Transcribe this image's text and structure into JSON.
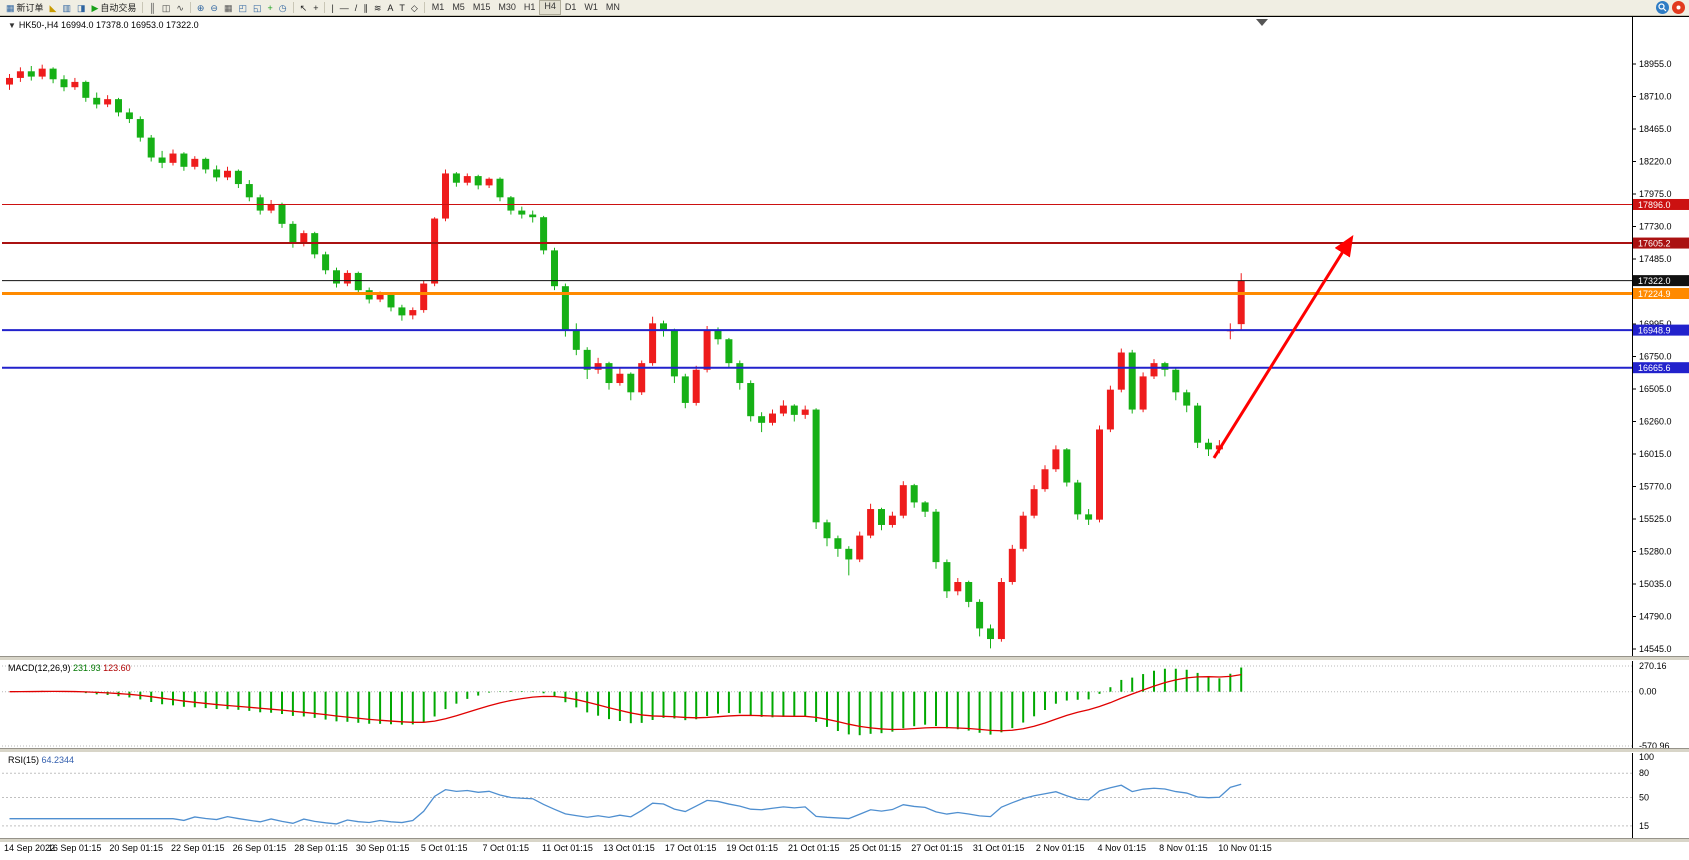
{
  "toolbar": {
    "buttons": [
      {
        "name": "new-order-button",
        "icon": "▦",
        "icon_color": "#2e64a0",
        "label": "新订单"
      },
      {
        "name": "alerts-icon",
        "icon": "◣",
        "icon_color": "#c89b00"
      },
      {
        "name": "market-watch-icon",
        "icon": "▥",
        "icon_color": "#2e64a0"
      },
      {
        "name": "navigator-icon",
        "icon": "◨",
        "icon_color": "#2e64a0"
      },
      {
        "name": "autotrading-button",
        "icon": "▶",
        "icon_color": "#18a018",
        "label": "自动交易"
      },
      {
        "divider": true
      },
      {
        "name": "bar-chart-type-icon",
        "icon": "║",
        "icon_color": "#444444"
      },
      {
        "name": "candlestick-type-icon",
        "icon": "◫",
        "icon_color": "#444444"
      },
      {
        "name": "line-chart-type-icon",
        "icon": "∿",
        "icon_color": "#444444"
      },
      {
        "divider": true
      },
      {
        "name": "zoom-in-icon",
        "icon": "⊕",
        "icon_color": "#2e64a0"
      },
      {
        "name": "zoom-out-icon",
        "icon": "⊖",
        "icon_color": "#2e64a0"
      },
      {
        "name": "tile-windows-icon",
        "icon": "▦",
        "icon_color": "#555555"
      },
      {
        "name": "cascade-windows-icon",
        "icon": "◰",
        "icon_color": "#2e64a0"
      },
      {
        "name": "arrange-windows-icon",
        "icon": "◱",
        "icon_color": "#2e64a0"
      },
      {
        "name": "add-indicator-icon",
        "icon": "+",
        "icon_color": "#18a018"
      },
      {
        "name": "periods-icon",
        "icon": "◷",
        "icon_color": "#2e64a0"
      },
      {
        "divider": true
      },
      {
        "name": "cursor-icon",
        "icon": "↖",
        "icon_color": "#222222"
      },
      {
        "name": "crosshair-icon",
        "icon": "+",
        "icon_color": "#222222"
      },
      {
        "divider": true
      },
      {
        "name": "vertical-line-icon",
        "icon": "|",
        "icon_color": "#222222"
      },
      {
        "name": "horizontal-line-icon",
        "icon": "—",
        "icon_color": "#222222"
      },
      {
        "name": "trendline-icon",
        "icon": "/",
        "icon_color": "#222222"
      },
      {
        "name": "channel-icon",
        "icon": "∥",
        "icon_color": "#222222"
      },
      {
        "name": "fibonacci-icon",
        "icon": "≋",
        "icon_color": "#222222"
      },
      {
        "name": "text-icon",
        "icon": "A",
        "icon_color": "#222222"
      },
      {
        "name": "text-label-icon",
        "icon": "T",
        "icon_color": "#222222"
      },
      {
        "name": "arrows-tool-icon",
        "icon": "◇",
        "icon_color": "#222222"
      },
      {
        "divider": true
      }
    ],
    "timeframes": [
      "M1",
      "M5",
      "M15",
      "M30",
      "H1",
      "H4",
      "D1",
      "W1",
      "MN"
    ],
    "active_timeframe": "H4"
  },
  "chart": {
    "context_icon": "▼",
    "title": {
      "symbol": "HK50-,H4",
      "ohlc": "16994.0 17378.0 16953.0 17322.0"
    },
    "macd": {
      "name": "MACD(12,26,9)",
      "value_main": "231.93",
      "value_signal": "123.60"
    },
    "rsi": {
      "name": "RSI(15)",
      "value": "64.2344"
    }
  },
  "chart_data": [
    {
      "type": "candlestick",
      "symbol": "HK50-",
      "timeframe": "H4",
      "last_bar": {
        "open": 16994.0,
        "high": 17378.0,
        "low": 16953.0,
        "close": 17322.0
      },
      "up_color": "#ee1c1c",
      "down_color": "#16b016",
      "y_ticks": [
        "18955.0",
        "18710.0",
        "18465.0",
        "18220.0",
        "17975.0",
        "17730.0",
        "17485.0",
        "17240.0",
        "16995.0",
        "16750.0",
        "16505.0",
        "16260.0",
        "16015.0",
        "15770.0",
        "15525.0",
        "15280.0",
        "15035.0",
        "14790.0",
        "14545.0"
      ],
      "x_labels": [
        "14 Sep 2022",
        "16 Sep 01:15",
        "20 Sep 01:15",
        "22 Sep 01:15",
        "26 Sep 01:15",
        "28 Sep 01:15",
        "30 Sep 01:15",
        "5 Oct 01:15",
        "7 Oct 01:15",
        "11 Oct 01:15",
        "13 Oct 01:15",
        "17 Oct 01:15",
        "19 Oct 01:15",
        "21 Oct 01:15",
        "25 Oct 01:15",
        "27 Oct 01:15",
        "31 Oct 01:15",
        "2 Nov 01:15",
        "4 Nov 01:15",
        "8 Nov 01:15",
        "10 Nov 01:15"
      ],
      "h_lines": [
        {
          "price": 17896.0,
          "label": "17896.0",
          "color": "#cc1111",
          "width": 1
        },
        {
          "price": 17605.2,
          "label": "17605.2",
          "color": "#aa1111",
          "width": 2
        },
        {
          "price": 17322.0,
          "label": "17322.0",
          "color": "#111111",
          "width": 1
        },
        {
          "price": 17224.9,
          "label": "17224.9",
          "color": "#ff8a00",
          "width": 3
        },
        {
          "price": 16948.9,
          "label": "16948.9",
          "color": "#2222cc",
          "width": 2
        },
        {
          "price": 16665.6,
          "label": "16665.6",
          "color": "#2222cc",
          "width": 2
        }
      ],
      "trend_arrow": {
        "color": "#ff0000",
        "from": {
          "index": 110.5,
          "price": 15985
        },
        "to": {
          "index": 123,
          "price": 17628
        }
      },
      "candles": [
        [
          18800,
          18880,
          18760,
          18850
        ],
        [
          18850,
          18930,
          18820,
          18900
        ],
        [
          18900,
          18940,
          18830,
          18860
        ],
        [
          18860,
          18950,
          18840,
          18920
        ],
        [
          18920,
          18930,
          18810,
          18840
        ],
        [
          18840,
          18870,
          18750,
          18780
        ],
        [
          18780,
          18850,
          18760,
          18820
        ],
        [
          18820,
          18830,
          18670,
          18700
        ],
        [
          18700,
          18740,
          18620,
          18650
        ],
        [
          18650,
          18720,
          18630,
          18690
        ],
        [
          18690,
          18700,
          18560,
          18590
        ],
        [
          18590,
          18620,
          18510,
          18540
        ],
        [
          18540,
          18560,
          18370,
          18400
        ],
        [
          18400,
          18420,
          18220,
          18250
        ],
        [
          18250,
          18300,
          18170,
          18210
        ],
        [
          18210,
          18310,
          18190,
          18280
        ],
        [
          18280,
          18290,
          18150,
          18180
        ],
        [
          18180,
          18260,
          18160,
          18240
        ],
        [
          18240,
          18250,
          18130,
          18160
        ],
        [
          18160,
          18190,
          18070,
          18100
        ],
        [
          18100,
          18180,
          18080,
          18150
        ],
        [
          18150,
          18160,
          18020,
          18050
        ],
        [
          18050,
          18080,
          17920,
          17950
        ],
        [
          17950,
          17970,
          17820,
          17850
        ],
        [
          17850,
          17930,
          17830,
          17900
        ],
        [
          17900,
          17910,
          17720,
          17750
        ],
        [
          17750,
          17770,
          17570,
          17600
        ],
        [
          17600,
          17700,
          17580,
          17680
        ],
        [
          17680,
          17690,
          17490,
          17520
        ],
        [
          17520,
          17540,
          17370,
          17400
        ],
        [
          17400,
          17420,
          17270,
          17300
        ],
        [
          17300,
          17400,
          17280,
          17380
        ],
        [
          17380,
          17390,
          17220,
          17250
        ],
        [
          17250,
          17270,
          17150,
          17180
        ],
        [
          17180,
          17240,
          17160,
          17220
        ],
        [
          17220,
          17230,
          17090,
          17120
        ],
        [
          17120,
          17140,
          17020,
          17060
        ],
        [
          17060,
          17120,
          17030,
          17100
        ],
        [
          17100,
          17320,
          17080,
          17300
        ],
        [
          17300,
          17800,
          17280,
          17790
        ],
        [
          17790,
          18160,
          17770,
          18130
        ],
        [
          18130,
          18140,
          18030,
          18060
        ],
        [
          18060,
          18130,
          18040,
          18110
        ],
        [
          18110,
          18120,
          18010,
          18040
        ],
        [
          18040,
          18100,
          18020,
          18090
        ],
        [
          18090,
          18100,
          17920,
          17950
        ],
        [
          17950,
          17960,
          17820,
          17850
        ],
        [
          17850,
          17880,
          17790,
          17820
        ],
        [
          17820,
          17850,
          17760,
          17800
        ],
        [
          17800,
          17810,
          17520,
          17550
        ],
        [
          17550,
          17570,
          17250,
          17280
        ],
        [
          17280,
          17300,
          16900,
          16950
        ],
        [
          16950,
          17000,
          16760,
          16800
        ],
        [
          16800,
          16820,
          16580,
          16650
        ],
        [
          16650,
          16740,
          16620,
          16700
        ],
        [
          16700,
          16710,
          16500,
          16550
        ],
        [
          16550,
          16660,
          16530,
          16620
        ],
        [
          16620,
          16630,
          16420,
          16480
        ],
        [
          16480,
          16720,
          16460,
          16700
        ],
        [
          16700,
          17050,
          16680,
          17000
        ],
        [
          17000,
          17020,
          16900,
          16950
        ],
        [
          16950,
          16960,
          16550,
          16600
        ],
        [
          16600,
          16620,
          16360,
          16400
        ],
        [
          16400,
          16680,
          16380,
          16650
        ],
        [
          16650,
          16980,
          16630,
          16950
        ],
        [
          16950,
          16970,
          16840,
          16880
        ],
        [
          16880,
          16890,
          16660,
          16700
        ],
        [
          16700,
          16720,
          16500,
          16550
        ],
        [
          16550,
          16570,
          16260,
          16300
        ],
        [
          16300,
          16330,
          16180,
          16250
        ],
        [
          16250,
          16350,
          16230,
          16320
        ],
        [
          16320,
          16420,
          16300,
          16380
        ],
        [
          16380,
          16390,
          16260,
          16310
        ],
        [
          16310,
          16380,
          16280,
          16350
        ],
        [
          16350,
          16360,
          15450,
          15500
        ],
        [
          15500,
          15520,
          15320,
          15380
        ],
        [
          15380,
          15400,
          15240,
          15300
        ],
        [
          15300,
          15320,
          15100,
          15220
        ],
        [
          15220,
          15430,
          15200,
          15400
        ],
        [
          15400,
          15640,
          15380,
          15600
        ],
        [
          15600,
          15610,
          15440,
          15480
        ],
        [
          15480,
          15580,
          15460,
          15550
        ],
        [
          15550,
          15810,
          15530,
          15780
        ],
        [
          15780,
          15790,
          15610,
          15650
        ],
        [
          15650,
          15660,
          15540,
          15580
        ],
        [
          15580,
          15600,
          15150,
          15200
        ],
        [
          15200,
          15220,
          14930,
          14980
        ],
        [
          14980,
          15080,
          14950,
          15050
        ],
        [
          15050,
          15060,
          14860,
          14900
        ],
        [
          14900,
          14920,
          14640,
          14700
        ],
        [
          14700,
          14730,
          14550,
          14620
        ],
        [
          14620,
          15080,
          14600,
          15050
        ],
        [
          15050,
          15330,
          15030,
          15300
        ],
        [
          15300,
          15580,
          15280,
          15550
        ],
        [
          15550,
          15780,
          15530,
          15750
        ],
        [
          15750,
          15930,
          15730,
          15900
        ],
        [
          15900,
          16080,
          15880,
          16050
        ],
        [
          16050,
          16060,
          15770,
          15800
        ],
        [
          15800,
          15820,
          15520,
          15560
        ],
        [
          15560,
          15600,
          15480,
          15520
        ],
        [
          15520,
          16230,
          15500,
          16200
        ],
        [
          16200,
          16530,
          16180,
          16500
        ],
        [
          16500,
          16810,
          16480,
          16780
        ],
        [
          16780,
          16800,
          16320,
          16350
        ],
        [
          16350,
          16630,
          16330,
          16600
        ],
        [
          16600,
          16730,
          16580,
          16700
        ],
        [
          16700,
          16710,
          16600,
          16650
        ],
        [
          16650,
          16660,
          16420,
          16480
        ],
        [
          16480,
          16500,
          16330,
          16380
        ],
        [
          16380,
          16400,
          16060,
          16100
        ],
        [
          16100,
          16130,
          16000,
          16050
        ],
        [
          16050,
          16120,
          16020,
          16080
        ],
        [
          16940,
          17000,
          16880,
          16950
        ],
        [
          16994,
          17378,
          16953,
          17322
        ]
      ]
    },
    {
      "type": "bar",
      "name": "MACD histogram with signal line",
      "params": "12,26,9",
      "derived_from": "candles",
      "current_macd": 231.93,
      "current_signal": 123.6,
      "y_labels": [
        "270.16",
        "0.00",
        "-570.96"
      ],
      "y_label_values": [
        270.16,
        0,
        -570.96
      ],
      "hist_color": "#00a800",
      "signal_color": "#e00000"
    },
    {
      "type": "line",
      "name": "RSI",
      "params": "15",
      "derived_from": "candles",
      "current": 64.2344,
      "y_labels": [
        "100",
        "80",
        "50",
        "15"
      ],
      "y_label_values": [
        100,
        80,
        50,
        15
      ],
      "levels": [
        80,
        50,
        15
      ],
      "line_color": "#4f8fd0"
    }
  ]
}
